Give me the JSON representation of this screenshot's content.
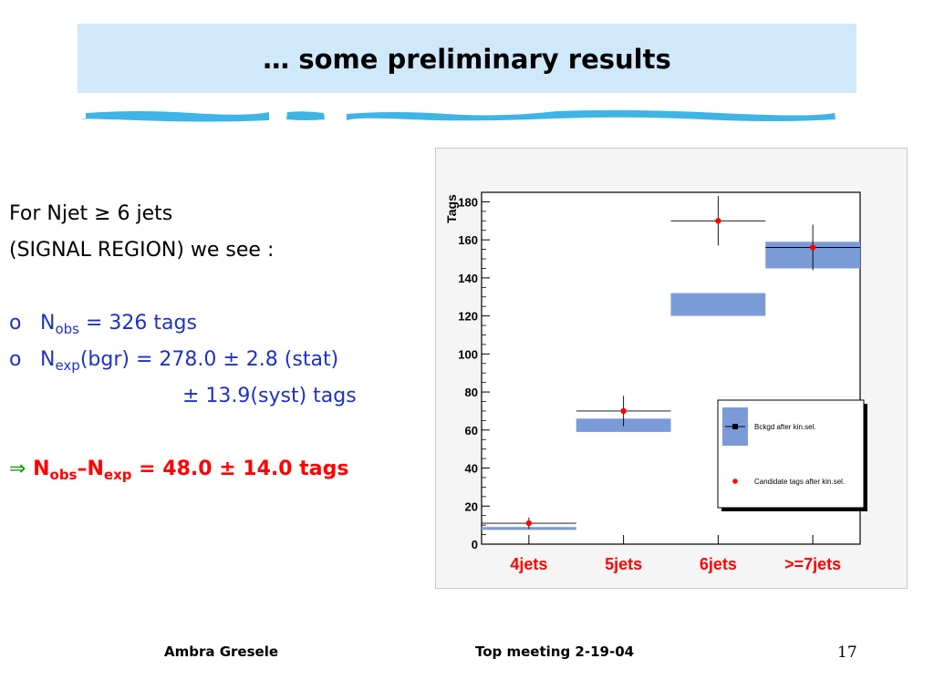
{
  "slide": {
    "title": "… some preliminary results",
    "lines": {
      "l1": "For Njet ≥ 6 jets",
      "l2": "(SIGNAL REGION) we see :",
      "b1_bullet": "o",
      "b1_N": "N",
      "b1_sub": "obs",
      "b1_rest": " = 326 tags",
      "b2_bullet": "o",
      "b2_N": "N",
      "b2_sub": "exp",
      "b2_rest": "(bgr) = 278.0 ± 2.8 (stat)",
      "b3": "± 13.9(syst) tags",
      "res_arrow": "⇒",
      "res_N1": " N",
      "res_sub1": "obs",
      "res_dash": "–N",
      "res_sub2": "exp",
      "res_rest": " = 48.0 ± 14.0 tags"
    },
    "footer": {
      "author": "Ambra Gresele",
      "meeting": "Top meeting 2-19-04",
      "page": "17"
    }
  },
  "colors": {
    "title_bg": "#cfe8fa",
    "text_blue": "#1e32c8",
    "result_red": "#ff0000",
    "arrow_green": "#00a000",
    "band_blue": "#7b9bd8",
    "point_red": "#ff0000",
    "tick_label_red": "#ff0000"
  },
  "chart_data": {
    "type": "bar",
    "ylabel": "Tags",
    "categories": [
      "4jets",
      "5jets",
      "6jets",
      ">=7jets"
    ],
    "ylim": [
      0,
      185
    ],
    "yticks": [
      0,
      20,
      40,
      60,
      80,
      100,
      120,
      140,
      160,
      180
    ],
    "series": [
      {
        "name": "Bckgd after kin.sel.",
        "kind": "band",
        "low": [
          7.5,
          59,
          120,
          145
        ],
        "high": [
          9,
          66,
          132,
          159
        ]
      },
      {
        "name": "Candidate tags after kin.sel.",
        "kind": "points",
        "values": [
          11,
          70,
          170,
          156
        ],
        "err": [
          3,
          8,
          13,
          12
        ]
      }
    ],
    "legend_position": "lower-right"
  }
}
